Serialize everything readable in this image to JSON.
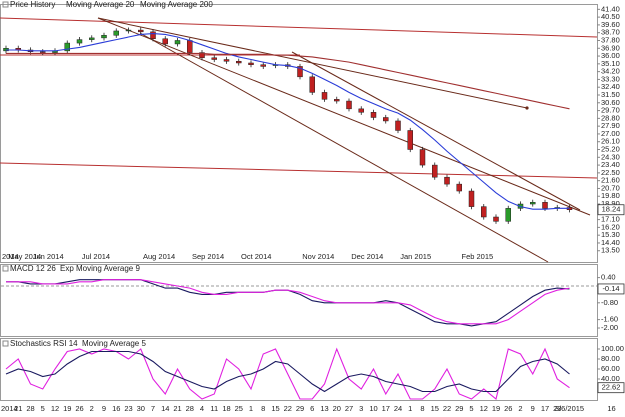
{
  "chart_data": [
    {
      "type": "candlestick",
      "title": "Price History",
      "color": "#2a8a2a",
      "up_color": "#2a9a2a",
      "down_color": "#c02020",
      "categories": [
        "2014",
        "21",
        "28",
        "5",
        "12",
        "19",
        "26",
        "2",
        "9",
        "16",
        "23",
        "30",
        "7",
        "14",
        "21",
        "28",
        "4",
        "11",
        "18",
        "25",
        "1",
        "8",
        "15",
        "22",
        "29",
        "6",
        "13",
        "20",
        "27",
        "3",
        "10",
        "17",
        "24",
        "1",
        "8",
        "15",
        "22",
        "29",
        "5",
        "12",
        "19",
        "26",
        "2",
        "9",
        "17",
        "23",
        "3/6/2015",
        "16"
      ],
      "month_labels": [
        "2014",
        "May 2014",
        "Jun 2014",
        "Jul 2014",
        "Aug 2014",
        "Sep 2014",
        "Oct 2014",
        "Nov 2014",
        "Dec 2014",
        "Jan 2015",
        "Feb 2015"
      ],
      "open": [
        36.6,
        36.9,
        36.7,
        36.5,
        36.4,
        36.6,
        37.5,
        37.9,
        38.1,
        38.4,
        38.9,
        39.0,
        38.8,
        38.0,
        37.4,
        37.8,
        36.4,
        35.8,
        35.6,
        35.4,
        35.2,
        35.0,
        34.9,
        35.0,
        34.8,
        33.6,
        31.8,
        31.0,
        30.8,
        29.9,
        29.5,
        28.9,
        28.5,
        27.4,
        25.2,
        23.4,
        22.0,
        21.2,
        20.4,
        18.6,
        17.4,
        16.9,
        18.4,
        18.9,
        19.1,
        18.4,
        18.5,
        null
      ],
      "high": [
        37.2,
        37.2,
        37.0,
        36.8,
        36.9,
        37.8,
        38.2,
        38.4,
        38.7,
        39.2,
        39.3,
        39.3,
        39.1,
        38.3,
        38.1,
        38.1,
        36.7,
        36.1,
        35.9,
        35.7,
        35.5,
        35.3,
        35.3,
        35.3,
        35.1,
        33.9,
        32.1,
        31.3,
        31.1,
        30.2,
        29.8,
        29.2,
        28.8,
        27.7,
        25.5,
        23.7,
        22.3,
        21.5,
        20.7,
        18.9,
        17.7,
        18.7,
        19.2,
        19.4,
        19.4,
        18.8,
        18.8,
        null
      ],
      "low": [
        36.3,
        36.4,
        36.2,
        36.1,
        36.1,
        36.3,
        37.2,
        37.6,
        37.8,
        38.1,
        38.6,
        38.5,
        37.7,
        37.1,
        37.1,
        36.1,
        35.5,
        35.3,
        35.1,
        34.9,
        34.7,
        34.5,
        34.6,
        34.5,
        33.3,
        31.5,
        30.7,
        30.5,
        29.6,
        29.2,
        28.6,
        28.2,
        27.1,
        24.9,
        23.1,
        21.7,
        20.9,
        20.1,
        18.3,
        17.1,
        16.6,
        16.6,
        18.1,
        18.6,
        18.1,
        18.1,
        17.94,
        null
      ],
      "close": [
        36.9,
        36.7,
        36.5,
        36.4,
        36.6,
        37.5,
        37.9,
        38.1,
        38.4,
        38.9,
        39.0,
        38.8,
        38.0,
        37.4,
        37.8,
        36.4,
        35.8,
        35.6,
        35.4,
        35.2,
        35.0,
        34.8,
        35.0,
        34.8,
        33.6,
        31.8,
        31.0,
        30.8,
        29.9,
        29.5,
        28.9,
        28.5,
        27.4,
        25.2,
        23.4,
        22.0,
        21.2,
        20.4,
        18.6,
        17.4,
        16.9,
        18.4,
        18.9,
        19.1,
        18.4,
        18.5,
        18.24,
        null
      ],
      "series": [
        {
          "name": "Moving Average 20",
          "color": "#2a3cd8",
          "values": [
            36.7,
            36.7,
            36.6,
            36.6,
            36.6,
            36.8,
            37.0,
            37.3,
            37.6,
            37.9,
            38.2,
            38.5,
            38.6,
            38.5,
            38.2,
            37.8,
            37.3,
            36.8,
            36.3,
            35.9,
            35.6,
            35.3,
            35.0,
            34.9,
            34.6,
            34.0,
            33.3,
            32.6,
            31.8,
            31.1,
            30.5,
            29.9,
            29.4,
            28.6,
            27.5,
            26.3,
            25.0,
            23.8,
            22.6,
            21.4,
            20.2,
            19.2,
            18.6,
            18.3,
            18.3,
            18.4,
            18.4,
            null
          ]
        },
        {
          "name": "Moving Average 200",
          "color": "#a03030",
          "values": [
            36.3,
            36.3,
            36.3,
            36.3,
            36.3,
            36.3,
            36.3,
            36.3,
            36.3,
            36.3,
            36.3,
            36.3,
            36.3,
            36.3,
            36.3,
            36.3,
            36.3,
            36.2,
            36.2,
            36.2,
            36.2,
            36.2,
            36.1,
            36.1,
            36.0,
            35.9,
            35.7,
            35.5,
            35.3,
            35.0,
            34.7,
            34.4,
            34.1,
            33.8,
            33.5,
            33.2,
            32.9,
            32.6,
            32.3,
            32.0,
            31.7,
            31.4,
            31.1,
            30.8,
            30.5,
            30.2,
            29.9,
            null
          ]
        }
      ],
      "ylim": [
        12.2,
        41.9
      ],
      "yticks": [
        {
          "value": 41.4,
          "label": "41.40"
        },
        {
          "value": 40.5,
          "label": "40.50"
        },
        {
          "value": 39.6,
          "label": "39.60"
        },
        {
          "value": 38.7,
          "label": "38.70"
        },
        {
          "value": 37.8,
          "label": "37.80"
        },
        {
          "value": 36.9,
          "label": "36.90"
        },
        {
          "value": 36.0,
          "label": "36.00"
        },
        {
          "value": 35.1,
          "label": "35.10"
        },
        {
          "value": 34.2,
          "label": "34.20"
        },
        {
          "value": 33.3,
          "label": "33.30"
        },
        {
          "value": 32.4,
          "label": "32.40"
        },
        {
          "value": 31.5,
          "label": "31.50"
        },
        {
          "value": 30.6,
          "label": "30.60"
        },
        {
          "value": 29.7,
          "label": "29.70"
        },
        {
          "value": 28.8,
          "label": "28.80"
        },
        {
          "value": 27.9,
          "label": "27.90"
        },
        {
          "value": 27.0,
          "label": "27.00"
        },
        {
          "value": 26.1,
          "label": "26.10"
        },
        {
          "value": 25.2,
          "label": "25.20"
        },
        {
          "value": 24.3,
          "label": "24.30"
        },
        {
          "value": 23.4,
          "label": "23.40"
        },
        {
          "value": 22.5,
          "label": "22.50"
        },
        {
          "value": 21.6,
          "label": "21.60"
        },
        {
          "value": 20.7,
          "label": "20.70"
        },
        {
          "value": 19.8,
          "label": "19.80"
        },
        {
          "value": 18.9,
          "label": "18.90"
        },
        {
          "value": 18.0,
          "label": "18.00"
        },
        {
          "value": 17.1,
          "label": "17.10"
        },
        {
          "value": 16.2,
          "label": "16.20"
        },
        {
          "value": 15.3,
          "label": "15.30"
        },
        {
          "value": 14.4,
          "label": "14.40"
        },
        {
          "value": 13.5,
          "label": "13.50"
        }
      ]
    },
    {
      "type": "line",
      "series": [
        {
          "name": "MACD 12 26",
          "color": "#1a1a60",
          "values": [
            0.2,
            0.2,
            0.1,
            0.1,
            0.1,
            0.2,
            0.3,
            0.3,
            0.3,
            0.3,
            0.3,
            0.3,
            0.1,
            -0.1,
            -0.1,
            -0.3,
            -0.4,
            -0.4,
            -0.3,
            -0.3,
            -0.3,
            -0.3,
            -0.2,
            -0.2,
            -0.4,
            -0.7,
            -0.8,
            -0.8,
            -0.8,
            -0.8,
            -0.8,
            -0.7,
            -0.8,
            -1.1,
            -1.4,
            -1.7,
            -1.8,
            -1.8,
            -1.9,
            -1.8,
            -1.7,
            -1.3,
            -0.9,
            -0.5,
            -0.2,
            -0.1,
            -0.14,
            null
          ]
        },
        {
          "name": "Exp Moving Average 9",
          "color": "#e020e0",
          "values": [
            0.2,
            0.2,
            0.2,
            0.1,
            0.1,
            0.1,
            0.2,
            0.2,
            0.3,
            0.3,
            0.3,
            0.3,
            0.2,
            0.1,
            0.0,
            -0.1,
            -0.3,
            -0.4,
            -0.4,
            -0.3,
            -0.3,
            -0.3,
            -0.2,
            -0.2,
            -0.3,
            -0.5,
            -0.7,
            -0.8,
            -0.8,
            -0.8,
            -0.8,
            -0.8,
            -0.8,
            -0.9,
            -1.2,
            -1.5,
            -1.7,
            -1.8,
            -1.8,
            -1.8,
            -1.8,
            -1.6,
            -1.2,
            -0.8,
            -0.4,
            -0.2,
            -0.1,
            null
          ]
        }
      ],
      "ylim": [
        -2.38,
        1.0
      ],
      "yticks": [
        {
          "value": 0.4,
          "label": "0.40"
        },
        {
          "value": -0.8,
          "label": "-0.80"
        },
        {
          "value": -1.6,
          "label": "-1.60"
        },
        {
          "value": -2.0,
          "label": "-2.00"
        }
      ]
    },
    {
      "type": "line",
      "series": [
        {
          "name": "Stochastics RSI 14",
          "color": "#e020e0",
          "values": [
            60,
            80,
            30,
            20,
            60,
            95,
            100,
            90,
            100,
            95,
            80,
            100,
            40,
            10,
            60,
            20,
            0,
            10,
            80,
            60,
            20,
            90,
            100,
            50,
            0,
            0,
            30,
            100,
            40,
            20,
            60,
            10,
            50,
            0,
            0,
            20,
            60,
            10,
            0,
            20,
            0,
            100,
            90,
            50,
            100,
            40,
            22.62,
            null
          ]
        },
        {
          "name": "Moving Average 5",
          "color": "#1a1a60",
          "values": [
            50,
            60,
            55,
            45,
            50,
            70,
            85,
            95,
            95,
            95,
            95,
            90,
            75,
            55,
            45,
            35,
            25,
            20,
            35,
            45,
            50,
            60,
            75,
            70,
            50,
            30,
            15,
            30,
            45,
            50,
            45,
            35,
            30,
            25,
            15,
            15,
            25,
            30,
            20,
            15,
            15,
            40,
            65,
            75,
            80,
            70,
            50,
            null
          ]
        }
      ],
      "ylim": [
        -2,
        120
      ],
      "yticks": [
        {
          "value": 100,
          "label": "100.00"
        },
        {
          "value": 80,
          "label": "80.00"
        },
        {
          "value": 60,
          "label": "60.00"
        },
        {
          "value": 40,
          "label": "40.00"
        }
      ]
    }
  ]
}
